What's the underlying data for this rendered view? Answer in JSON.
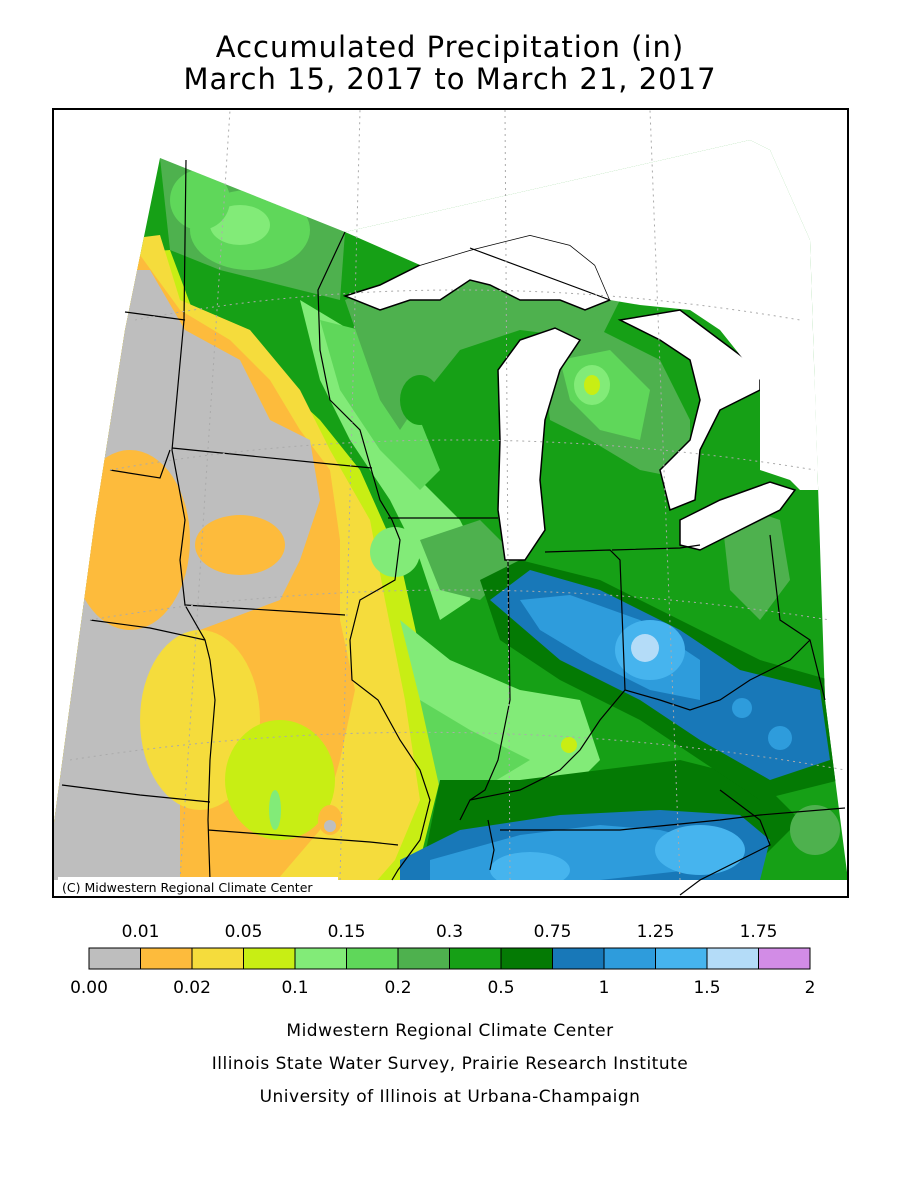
{
  "title": {
    "line1": "Accumulated Precipitation (in)",
    "line2": "March 15, 2017 to March 21, 2017"
  },
  "map": {
    "copyright": "(C) Midwestern Regional Climate Center",
    "region": "Midwest United States"
  },
  "legend": {
    "bins": [
      {
        "from": "0.00",
        "to": "0.01",
        "color": "#bebebe"
      },
      {
        "from": "0.01",
        "to": "0.02",
        "color": "#fdbb3c"
      },
      {
        "from": "0.02",
        "to": "0.05",
        "color": "#f5dc3c"
      },
      {
        "from": "0.05",
        "to": "0.1",
        "color": "#c8ee14"
      },
      {
        "from": "0.1",
        "to": "0.15",
        "color": "#82eb78"
      },
      {
        "from": "0.15",
        "to": "0.2",
        "color": "#5fd75a"
      },
      {
        "from": "0.2",
        "to": "0.3",
        "color": "#4eb14e"
      },
      {
        "from": "0.3",
        "to": "0.5",
        "color": "#16a016"
      },
      {
        "from": "0.5",
        "to": "0.75",
        "color": "#047a04"
      },
      {
        "from": "0.75",
        "to": "1",
        "color": "#1878b8"
      },
      {
        "from": "1",
        "to": "1.25",
        "color": "#2e9cdc"
      },
      {
        "from": "1.25",
        "to": "1.5",
        "color": "#46b4ee"
      },
      {
        "from": "1.5",
        "to": "1.75",
        "color": "#b4dcf8"
      },
      {
        "from": "1.75",
        "to": "2",
        "color": "#d28ce6"
      }
    ],
    "top_labels": [
      "0.01",
      "0.05",
      "0.15",
      "0.3",
      "0.75",
      "1.25",
      "1.75"
    ],
    "bottom_labels": [
      "0.00",
      "0.02",
      "0.1",
      "0.2",
      "0.5",
      "1",
      "1.5",
      "2"
    ]
  },
  "credits": {
    "line1": "Midwestern Regional Climate Center",
    "line2": "Illinois State Water Survey, Prairie Research Institute",
    "line3": "University of Illinois at Urbana-Champaign"
  }
}
